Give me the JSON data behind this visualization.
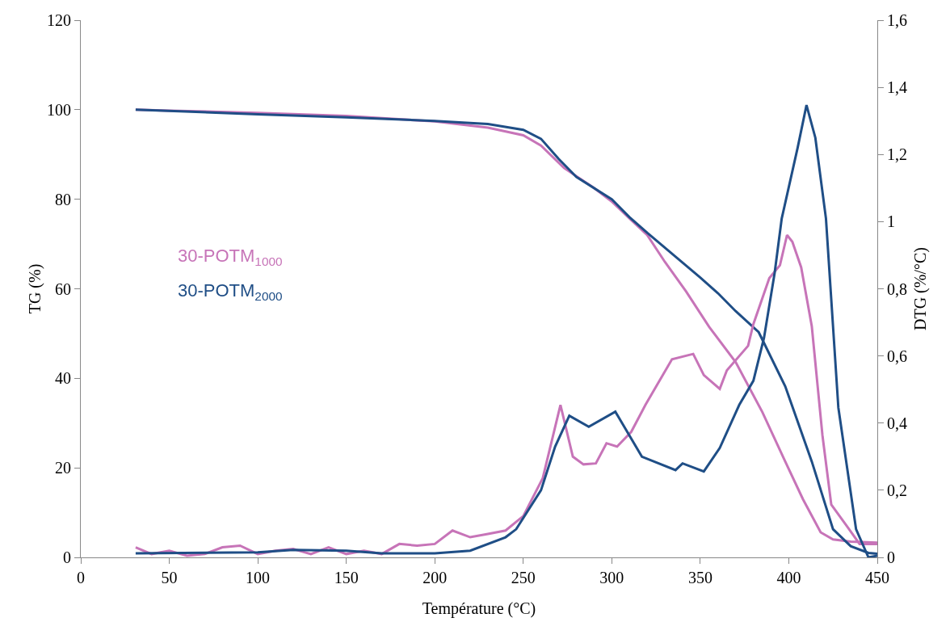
{
  "chart_data": {
    "type": "line",
    "xlabel": "Température (°C)",
    "ylabel": "TG (%)",
    "y2label": "DTG (%/°C)",
    "xlim": [
      0,
      450
    ],
    "xticks": [
      0,
      50,
      100,
      150,
      200,
      250,
      300,
      350,
      400,
      450
    ],
    "ylim": [
      0,
      120
    ],
    "yticks": [
      0,
      20,
      40,
      60,
      80,
      100,
      120
    ],
    "y2lim": [
      0,
      1.6
    ],
    "y2ticks": [
      0,
      {
        "value": 0.2,
        "label": "0,2"
      },
      {
        "value": 0.4,
        "label": "0,4"
      },
      {
        "value": 0.6,
        "label": "0,6"
      },
      {
        "value": 0.8,
        "label": "0,8"
      },
      1,
      {
        "value": 1.2,
        "label": "1,2"
      },
      {
        "value": 1.4,
        "label": "1,4"
      },
      {
        "value": 1.6,
        "label": "1,6"
      }
    ],
    "grid": false,
    "legend": false,
    "marker": "none",
    "line_style": "solid",
    "series": [
      {
        "name": "30-POTM$_{1000}$",
        "color": "#c774b8",
        "x": [
          31,
          50,
          100,
          150,
          200,
          230,
          250,
          260,
          273,
          290,
          300,
          310,
          320,
          330,
          342,
          355,
          370,
          385,
          398,
          408,
          418,
          425,
          435,
          450
        ],
        "values": [
          100,
          99.8,
          99.3,
          98.6,
          97.4,
          96,
          94.3,
          92,
          87,
          82.5,
          79.5,
          75.7,
          72,
          66,
          59.4,
          51.5,
          43.6,
          32.5,
          21.4,
          13,
          5.6,
          4,
          3.5,
          3.3
        ]
      },
      {
        "name": "30-POTM$_{2000}$",
        "color": "#1f4e86",
        "x": [
          31,
          100,
          150,
          200,
          230,
          250,
          260,
          270,
          280,
          300,
          310,
          320,
          335,
          350,
          360,
          370,
          383,
          398,
          413,
          425,
          435,
          445,
          450
        ],
        "values": [
          100,
          99,
          98.3,
          97.5,
          96.8,
          95.5,
          93.5,
          89,
          85,
          80,
          76,
          72.5,
          67.5,
          62.5,
          59,
          55,
          50.3,
          38.2,
          21.4,
          6.3,
          2.5,
          1,
          0.8
        ]
      },
      {
        "color": "#c774b8",
        "axis": "y2",
        "x": [
          31,
          40,
          50,
          60,
          70,
          80,
          90,
          100,
          110,
          120,
          130,
          140,
          150,
          160,
          170,
          180,
          190,
          200,
          210,
          220,
          230,
          240,
          250,
          261,
          271,
          278,
          284,
          291,
          297,
          303,
          311,
          319,
          334,
          346,
          352,
          361,
          365,
          377,
          380,
          389,
          395,
          399,
          402,
          407,
          413,
          419,
          424,
          433,
          440,
          450
        ],
        "values": [
          0.03,
          0.01,
          0.02,
          0.005,
          0.01,
          0.03,
          0.035,
          0.01,
          0.02,
          0.025,
          0.01,
          0.03,
          0.01,
          0.02,
          0.01,
          0.04,
          0.035,
          0.04,
          0.08,
          0.06,
          0.07,
          0.08,
          0.123,
          0.236,
          0.454,
          0.3,
          0.277,
          0.28,
          0.34,
          0.33,
          0.374,
          0.454,
          0.59,
          0.606,
          0.543,
          0.502,
          0.557,
          0.63,
          0.695,
          0.832,
          0.87,
          0.96,
          0.94,
          0.864,
          0.688,
          0.364,
          0.157,
          0.092,
          0.04,
          0.04
        ]
      },
      {
        "color": "#1f4e86",
        "axis": "y2",
        "x": [
          31,
          100,
          120,
          150,
          170,
          200,
          220,
          240,
          246,
          260,
          268,
          276,
          287,
          302,
          317,
          336,
          340,
          352,
          361,
          372,
          380,
          386,
          392,
          396,
          405,
          410,
          415,
          421,
          428,
          438,
          445,
          450
        ],
        "values": [
          0.012,
          0.015,
          0.022,
          0.02,
          0.012,
          0.012,
          0.02,
          0.06,
          0.084,
          0.2,
          0.33,
          0.422,
          0.389,
          0.434,
          0.3,
          0.26,
          0.28,
          0.256,
          0.326,
          0.454,
          0.526,
          0.654,
          0.847,
          1.009,
          1.22,
          1.347,
          1.25,
          1.009,
          0.446,
          0.084,
          0,
          0.005
        ]
      }
    ]
  }
}
